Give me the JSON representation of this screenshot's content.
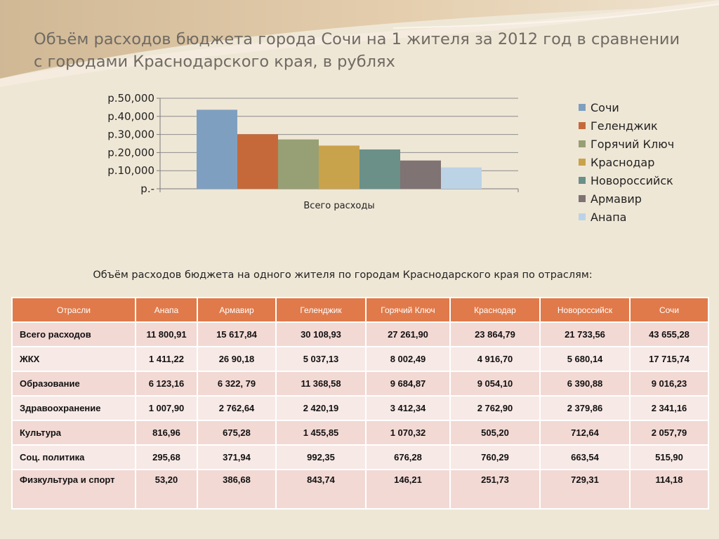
{
  "title_lines": [
    "Объём расходов бюджета города Сочи на 1 жителя за 2012 год в сравнении",
    "с городами Краснодарского края, в рублях"
  ],
  "colors": {
    "background": "#efe7d6",
    "table_header": "#e07a4a",
    "row_odd": "#f2d9d4",
    "row_even": "#f7e9e6"
  },
  "chart_data": {
    "type": "bar",
    "categories": [
      "Всего расходы"
    ],
    "series": [
      {
        "name": "Сочи",
        "color": "#7f9fc0",
        "values": [
          43655.28
        ]
      },
      {
        "name": "Геленджик",
        "color": "#c6693a",
        "values": [
          30108.93
        ]
      },
      {
        "name": "Горячий Ключ",
        "color": "#97a074",
        "values": [
          27261.9
        ]
      },
      {
        "name": "Краснодар",
        "color": "#c9a24c",
        "values": [
          23864.79
        ]
      },
      {
        "name": "Новороссийск",
        "color": "#6b9088",
        "values": [
          21733.56
        ]
      },
      {
        "name": "Армавир",
        "color": "#807373",
        "values": [
          15617.84
        ]
      },
      {
        "name": "Анапа",
        "color": "#bcd3e6",
        "values": [
          11800.91
        ]
      }
    ],
    "ylim": [
      0,
      50000
    ],
    "yticks": [
      0,
      10000,
      20000,
      30000,
      40000,
      50000
    ],
    "ytick_labels": [
      "р.-",
      "р.10,000",
      "р.20,000",
      "р.30,000",
      "р.40,000",
      "р.50,000"
    ],
    "grid": true,
    "legend_position": "right"
  },
  "table": {
    "caption": "Объём расходов бюджета на одного жителя по городам Краснодарского края по отраслям:",
    "headers": [
      "Отрасли",
      "Анапа",
      "Армавир",
      "Геленджик",
      "Горячий Ключ",
      "Краснодар",
      "Новороссийск",
      "Сочи"
    ],
    "rows": [
      [
        "Всего расходов",
        "11 800,91",
        "15 617,84",
        "30 108,93",
        "27 261,90",
        "23 864,79",
        "21 733,56",
        "43 655,28"
      ],
      [
        "ЖКХ",
        "1 411,22",
        "26 90,18",
        "5 037,13",
        "8 002,49",
        "4 916,70",
        "5 680,14",
        "17 715,74"
      ],
      [
        "Образование",
        "6 123,16",
        "6 322, 79",
        "11 368,58",
        "9 684,87",
        "9 054,10",
        "6 390,88",
        "9 016,23"
      ],
      [
        "Здравоохранение",
        "1 007,90",
        "2 762,64",
        "2 420,19",
        "3 412,34",
        "2 762,90",
        "2 379,86",
        "2 341,16"
      ],
      [
        "Культура",
        "816,96",
        "675,28",
        "1 455,85",
        "1 070,32",
        "505,20",
        "712,64",
        "2 057,79"
      ],
      [
        "Соц. политика",
        "295,68",
        "371,94",
        "992,35",
        "676,28",
        "760,29",
        "663,54",
        "515,90"
      ],
      [
        "Физкультура и спорт",
        "53,20",
        "386,68",
        "843,74",
        "146,21",
        "251,73",
        "729,31",
        "114,18"
      ]
    ]
  }
}
